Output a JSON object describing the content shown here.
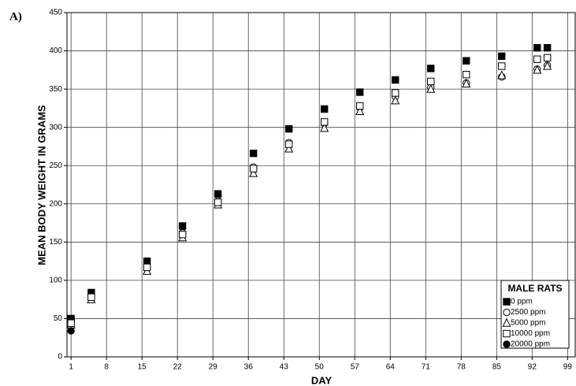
{
  "chart_data": {
    "type": "scatter",
    "panel_label": "A)",
    "xlabel": "DAY",
    "ylabel": "MEAN BODY WEIGHT IN GRAMS",
    "x": [
      1,
      5,
      16,
      23,
      30,
      37,
      44,
      51,
      58,
      65,
      72,
      79,
      86,
      93,
      95
    ],
    "series": [
      {
        "name": "0 ppm",
        "color": "#000000",
        "marker": "filled-square",
        "values": [
          50,
          84,
          125,
          171,
          213,
          266,
          298,
          324,
          346,
          362,
          377,
          387,
          393,
          404,
          404
        ]
      },
      {
        "name": "2500 ppm",
        "color": "#000000",
        "marker": "open-circle",
        "values": [
          44,
          77,
          116,
          162,
          204,
          248,
          280,
          305,
          326,
          340,
          352,
          358,
          366,
          376,
          381
        ]
      },
      {
        "name": "5000 ppm",
        "color": "#000000",
        "marker": "open-triangle",
        "values": [
          42,
          75,
          112,
          156,
          199,
          240,
          272,
          299,
          321,
          335,
          350,
          357,
          368,
          375,
          380
        ]
      },
      {
        "name": "10000 ppm",
        "color": "#000000",
        "marker": "open-square",
        "values": [
          44,
          78,
          117,
          160,
          202,
          246,
          278,
          307,
          328,
          345,
          360,
          369,
          380,
          389,
          391
        ]
      },
      {
        "name": "20000 ppm",
        "color": "#000000",
        "marker": "filled-circle",
        "values": [
          34,
          null,
          null,
          null,
          null,
          null,
          null,
          null,
          null,
          null,
          null,
          null,
          null,
          null,
          null
        ]
      }
    ],
    "legend_title": "MALE RATS",
    "legend": "lower right",
    "grid": true,
    "xlim": [
      0.2,
      100.5
    ],
    "xticks": [
      1,
      8,
      15,
      22,
      29,
      36,
      43,
      50,
      57,
      64,
      71,
      78,
      85,
      92,
      99
    ],
    "ylim": [
      0,
      450
    ],
    "yticks": [
      0,
      50,
      100,
      150,
      200,
      250,
      300,
      350,
      400,
      450
    ]
  }
}
